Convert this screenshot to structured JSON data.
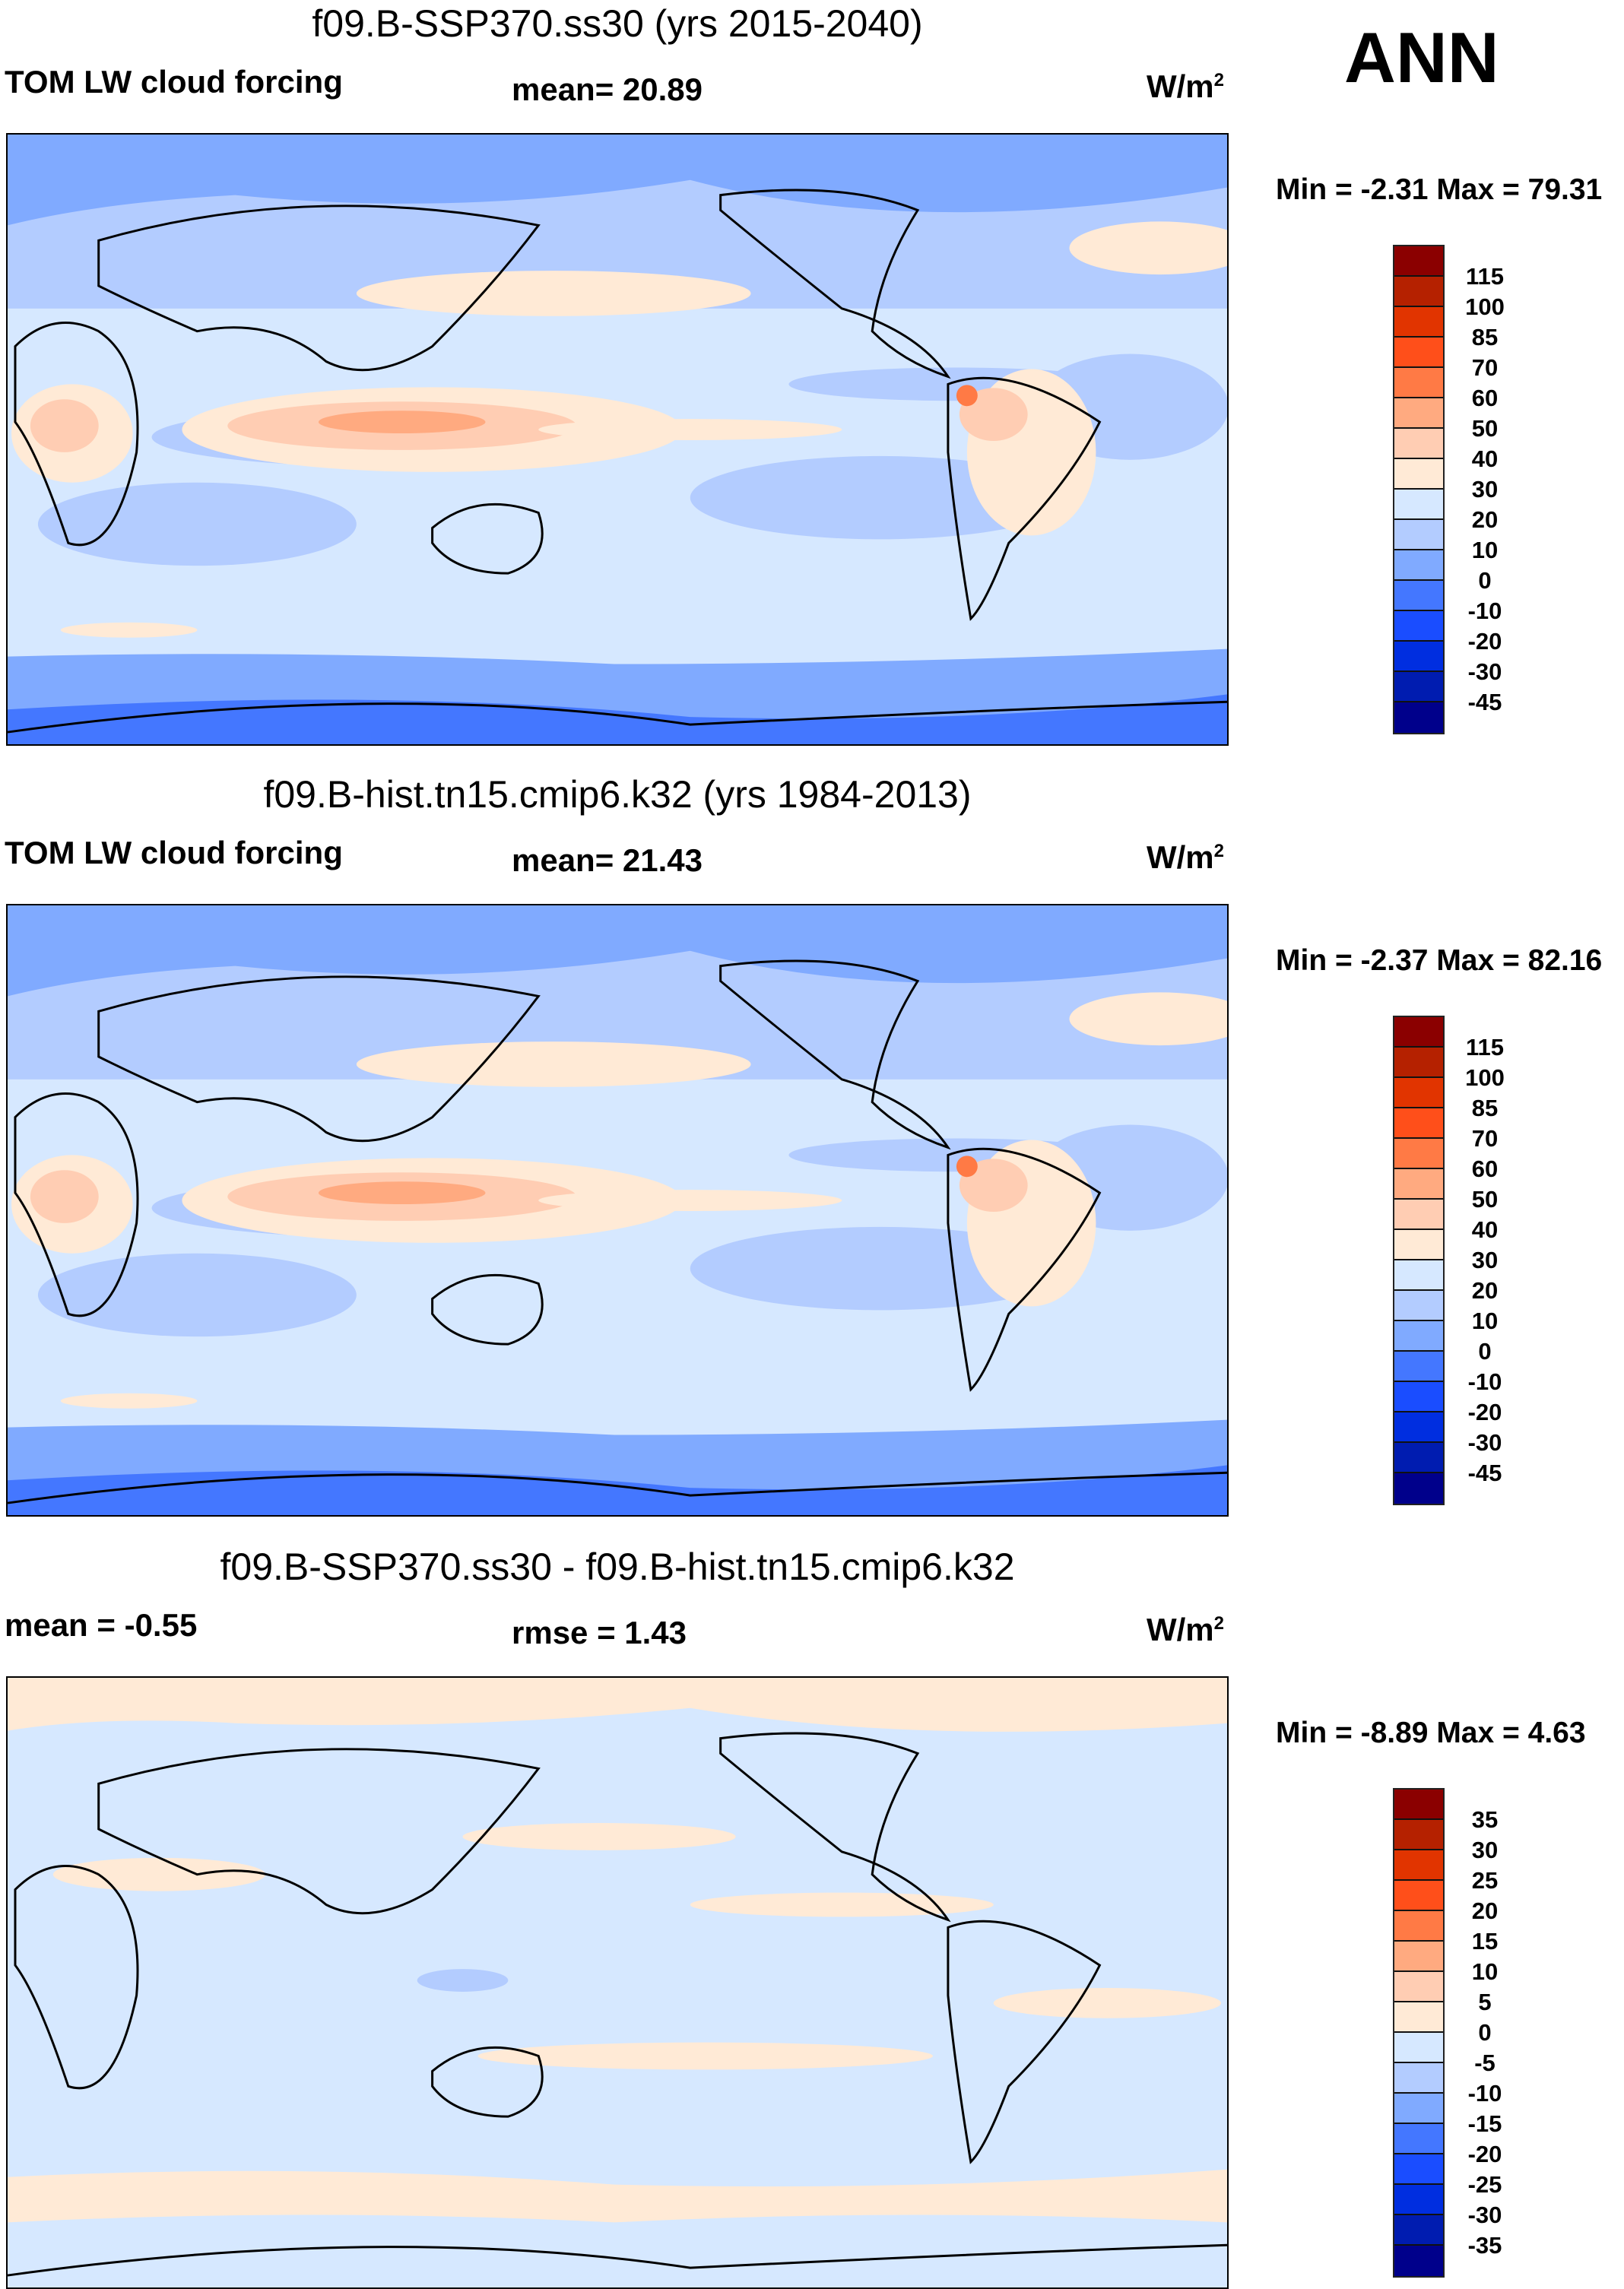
{
  "season": "ANN",
  "units": "W/m",
  "units_exp": "2",
  "chart_data": [
    {
      "type": "heatmap",
      "title": "f09.B-SSP370.ss30 (yrs 2015-2040)",
      "left_label": "TOM LW cloud forcing",
      "center_label": "mean=  20.89",
      "mean": 20.89,
      "min": -2.31,
      "max": 79.31,
      "minmax_text": "Min =  -2.31 Max =  79.31",
      "colorbar_levels": [
        "115",
        "100",
        "85",
        "70",
        "60",
        "50",
        "40",
        "30",
        "20",
        "10",
        "0",
        "-10",
        "-20",
        "-30",
        "-45"
      ],
      "colorbar_colors": [
        "#8b0000",
        "#b52100",
        "#e13400",
        "#ff4f1a",
        "#ff7a45",
        "#ffaa80",
        "#ffcdb3",
        "#ffead6",
        "#d6e8ff",
        "#b3ccff",
        "#80aaff",
        "#4477ff",
        "#1a4dff",
        "#002ee0",
        "#001cb0",
        "#00008b"
      ]
    },
    {
      "type": "heatmap",
      "title": "f09.B-hist.tn15.cmip6.k32 (yrs 1984-2013)",
      "left_label": "TOM LW cloud forcing",
      "center_label": "mean=  21.43",
      "mean": 21.43,
      "min": -2.37,
      "max": 82.16,
      "minmax_text": "Min =  -2.37 Max =  82.16",
      "colorbar_levels": [
        "115",
        "100",
        "85",
        "70",
        "60",
        "50",
        "40",
        "30",
        "20",
        "10",
        "0",
        "-10",
        "-20",
        "-30",
        "-45"
      ],
      "colorbar_colors": [
        "#8b0000",
        "#b52100",
        "#e13400",
        "#ff4f1a",
        "#ff7a45",
        "#ffaa80",
        "#ffcdb3",
        "#ffead6",
        "#d6e8ff",
        "#b3ccff",
        "#80aaff",
        "#4477ff",
        "#1a4dff",
        "#002ee0",
        "#001cb0",
        "#00008b"
      ]
    },
    {
      "type": "heatmap",
      "title": "f09.B-SSP370.ss30 - f09.B-hist.tn15.cmip6.k32",
      "left_label": "mean =  -0.55",
      "center_label": "rmse =   1.43",
      "mean": -0.55,
      "rmse": 1.43,
      "min": -8.89,
      "max": 4.63,
      "minmax_text": "Min =  -8.89 Max =   4.63",
      "colorbar_levels": [
        "35",
        "30",
        "25",
        "20",
        "15",
        "10",
        "5",
        "0",
        "-5",
        "-10",
        "-15",
        "-20",
        "-25",
        "-30",
        "-35"
      ],
      "colorbar_colors": [
        "#8b0000",
        "#b52100",
        "#e13400",
        "#ff4f1a",
        "#ff7a45",
        "#ffaa80",
        "#ffcdb3",
        "#ffead6",
        "#d6e8ff",
        "#b3ccff",
        "#80aaff",
        "#4477ff",
        "#1a4dff",
        "#002ee0",
        "#001cb0",
        "#00008b"
      ]
    }
  ]
}
